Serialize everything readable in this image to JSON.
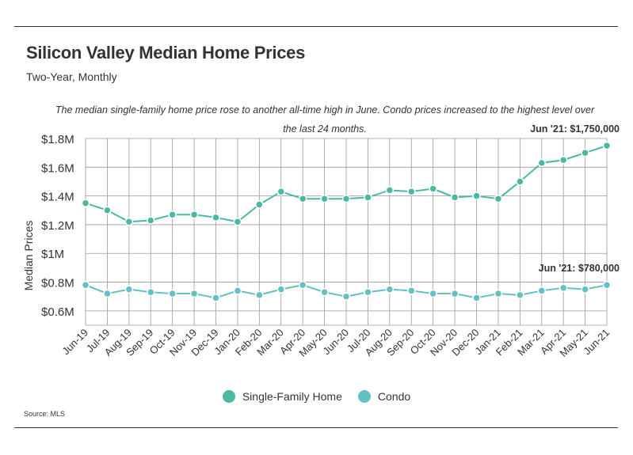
{
  "title": "Silicon Valley Median Home Prices",
  "subtitle": "Two-Year, Monthly",
  "note": "The median single-family home price rose to another all-time high in June. Condo prices increased to the highest level over the last 24 months.",
  "source": "Source:  MLS",
  "colors": {
    "single_family": "#4bb8a4",
    "condo": "#64c0c2",
    "grid": "#9a9a9a"
  },
  "legend": {
    "single_family_label": "Single-Family Home",
    "condo_label": "Condo"
  },
  "chart_data": {
    "type": "line",
    "ylabel": "Median Prices",
    "xlabel": "",
    "ylim": [
      0.5,
      1.8
    ],
    "grid": true,
    "legend_position": "bottom",
    "y_ticks": [
      {
        "value": 0.6,
        "label": "$0.6M"
      },
      {
        "value": 0.8,
        "label": "$0.8M"
      },
      {
        "value": 1.0,
        "label": "$1M"
      },
      {
        "value": 1.2,
        "label": "$1.2M"
      },
      {
        "value": 1.4,
        "label": "$1.4M"
      },
      {
        "value": 1.6,
        "label": "$1.6M"
      },
      {
        "value": 1.8,
        "label": "$1.8M"
      }
    ],
    "categories": [
      "Jun-19",
      "Jul-19",
      "Aug-19",
      "Sep-19",
      "Oct-19",
      "Nov-19",
      "Dec-19",
      "Jan-20",
      "Feb-20",
      "Mar-20",
      "Apr-20",
      "May-20",
      "Jun-20",
      "Jul-20",
      "Aug-20",
      "Sep-20",
      "Oct-20",
      "Nov-20",
      "Dec-20",
      "Jan-21",
      "Feb-21",
      "Mar-21",
      "Apr-21",
      "May-21",
      "Jun-21"
    ],
    "series": [
      {
        "name": "Single-Family Home",
        "color": "#4bb8a4",
        "values": [
          1.35,
          1.3,
          1.22,
          1.23,
          1.27,
          1.27,
          1.25,
          1.22,
          1.34,
          1.43,
          1.38,
          1.38,
          1.38,
          1.39,
          1.44,
          1.43,
          1.45,
          1.39,
          1.4,
          1.38,
          1.5,
          1.63,
          1.65,
          1.7,
          1.75
        ]
      },
      {
        "name": "Condo",
        "color": "#64c0c2",
        "values": [
          0.78,
          0.72,
          0.75,
          0.73,
          0.72,
          0.72,
          0.69,
          0.74,
          0.71,
          0.75,
          0.78,
          0.73,
          0.7,
          0.73,
          0.75,
          0.74,
          0.72,
          0.72,
          0.69,
          0.72,
          0.71,
          0.74,
          0.76,
          0.75,
          0.78
        ]
      }
    ],
    "annotations": [
      {
        "series": "Single-Family Home",
        "index": 24,
        "text": "Jun '21: $1,750,000"
      },
      {
        "series": "Condo",
        "index": 24,
        "text": "Jun '21: $780,000"
      }
    ]
  }
}
